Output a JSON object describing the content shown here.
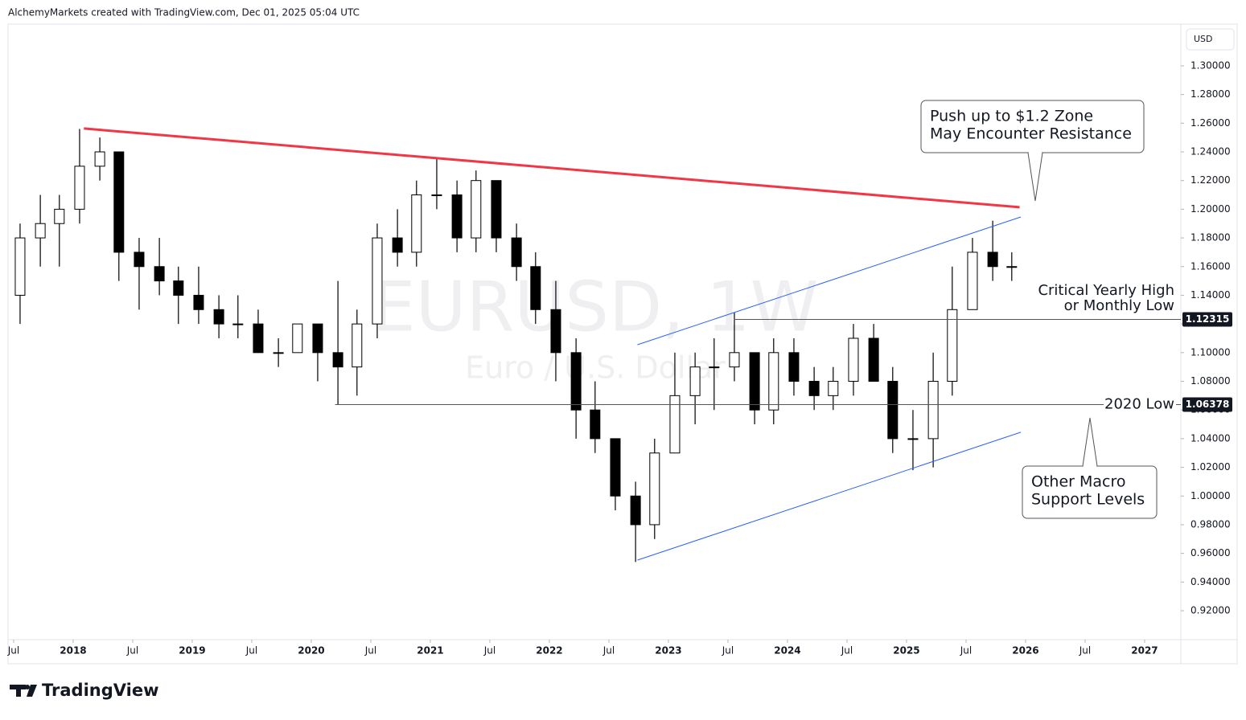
{
  "header": "AlchemyMarkets created with TradingView.com, Dec 01, 2025 05:04 UTC",
  "logo": "TradingView",
  "chart_data": {
    "type": "candlestick",
    "symbol": "EURUSD, 1W",
    "description": "Euro / U.S. Dollar",
    "currency": "USD",
    "up_color": "#ffffff",
    "down_color": "#000000",
    "x": [
      2017.5,
      2017.67,
      2017.83,
      2018.0,
      2018.17,
      2018.33,
      2018.5,
      2018.67,
      2018.83,
      2019.0,
      2019.17,
      2019.33,
      2019.5,
      2019.67,
      2019.83,
      2020.0,
      2020.17,
      2020.33,
      2020.5,
      2020.67,
      2020.83,
      2021.0,
      2021.17,
      2021.33,
      2021.5,
      2021.67,
      2021.83,
      2022.0,
      2022.17,
      2022.33,
      2022.5,
      2022.67,
      2022.83,
      2023.0,
      2023.17,
      2023.33,
      2023.5,
      2023.67,
      2023.83,
      2024.0,
      2024.17,
      2024.33,
      2024.5,
      2024.67,
      2024.83,
      2025.0,
      2025.17,
      2025.33,
      2025.5,
      2025.67,
      2025.83
    ],
    "open": [
      1.14,
      1.18,
      1.19,
      1.2,
      1.23,
      1.24,
      1.17,
      1.16,
      1.15,
      1.14,
      1.13,
      1.12,
      1.12,
      1.1,
      1.1,
      1.12,
      1.1,
      1.09,
      1.12,
      1.18,
      1.17,
      1.21,
      1.21,
      1.18,
      1.22,
      1.18,
      1.16,
      1.13,
      1.1,
      1.06,
      1.04,
      1.0,
      0.98,
      1.03,
      1.07,
      1.09,
      1.09,
      1.1,
      1.06,
      1.1,
      1.08,
      1.07,
      1.08,
      1.11,
      1.08,
      1.04,
      1.04,
      1.08,
      1.13,
      1.17,
      1.16
    ],
    "high": [
      1.19,
      1.21,
      1.21,
      1.256,
      1.25,
      1.24,
      1.18,
      1.18,
      1.16,
      1.16,
      1.14,
      1.14,
      1.13,
      1.11,
      1.12,
      1.12,
      1.15,
      1.13,
      1.19,
      1.2,
      1.22,
      1.235,
      1.22,
      1.227,
      1.22,
      1.19,
      1.17,
      1.15,
      1.11,
      1.08,
      1.04,
      1.01,
      1.04,
      1.1,
      1.1,
      1.11,
      1.128,
      1.1,
      1.11,
      1.11,
      1.09,
      1.09,
      1.12,
      1.12,
      1.09,
      1.06,
      1.1,
      1.16,
      1.18,
      1.192,
      1.17
    ],
    "low": [
      1.12,
      1.16,
      1.16,
      1.19,
      1.22,
      1.15,
      1.13,
      1.14,
      1.12,
      1.12,
      1.11,
      1.11,
      1.1,
      1.09,
      1.1,
      1.08,
      1.064,
      1.07,
      1.11,
      1.16,
      1.16,
      1.2,
      1.17,
      1.17,
      1.17,
      1.15,
      1.12,
      1.08,
      1.04,
      1.03,
      0.99,
      0.954,
      0.97,
      1.03,
      1.05,
      1.06,
      1.08,
      1.05,
      1.05,
      1.07,
      1.06,
      1.06,
      1.07,
      1.08,
      1.03,
      1.018,
      1.02,
      1.07,
      1.13,
      1.15,
      1.15
    ],
    "close": [
      1.18,
      1.19,
      1.2,
      1.23,
      1.24,
      1.17,
      1.16,
      1.15,
      1.14,
      1.13,
      1.12,
      1.12,
      1.1,
      1.1,
      1.12,
      1.1,
      1.09,
      1.12,
      1.18,
      1.17,
      1.21,
      1.21,
      1.18,
      1.22,
      1.18,
      1.16,
      1.13,
      1.1,
      1.06,
      1.04,
      1.0,
      0.98,
      1.03,
      1.07,
      1.09,
      1.09,
      1.1,
      1.06,
      1.1,
      1.08,
      1.07,
      1.08,
      1.11,
      1.08,
      1.04,
      1.04,
      1.08,
      1.13,
      1.17,
      1.16,
      1.16
    ],
    "xlim": [
      2017.453,
      2027.284
    ],
    "xticks": [
      {
        "value": 2017.5,
        "label": "Jul"
      },
      2018,
      {
        "value": 2018.5,
        "label": "Jul"
      },
      2019,
      {
        "value": 2019.5,
        "label": "Jul"
      },
      2020,
      {
        "value": 2020.5,
        "label": "Jul"
      },
      2021,
      {
        "value": 2021.5,
        "label": "Jul"
      },
      2022,
      {
        "value": 2022.5,
        "label": "Jul"
      },
      2023,
      {
        "value": 2023.5,
        "label": "Jul"
      },
      2024,
      {
        "value": 2024.5,
        "label": "Jul"
      },
      2025,
      {
        "value": 2025.5,
        "label": "Jul"
      },
      2026,
      {
        "value": 2026.5,
        "label": "Jul"
      },
      2027
    ],
    "ylim": [
      0.9004,
      1.3291
    ],
    "yticks": [
      {
        "value": 0.92,
        "label": "0.92000"
      },
      {
        "value": 0.94,
        "label": "0.94000"
      },
      {
        "value": 0.96,
        "label": "0.96000"
      },
      {
        "value": 0.98,
        "label": "0.98000"
      },
      {
        "value": 1.0,
        "label": "1.00000"
      },
      {
        "value": 1.02,
        "label": "1.02000"
      },
      {
        "value": 1.04,
        "label": "1.04000"
      },
      {
        "value": 1.06,
        "label": "1.06000"
      },
      {
        "value": 1.08,
        "label": "1.08000"
      },
      {
        "value": 1.1,
        "label": "1.10000"
      },
      {
        "value": 1.12,
        "label": "1.12000"
      },
      {
        "value": 1.14,
        "label": "1.14000"
      },
      {
        "value": 1.16,
        "label": "1.16000"
      },
      {
        "value": 1.18,
        "label": "1.18000"
      },
      {
        "value": 1.2,
        "label": "1.20000"
      },
      {
        "value": 1.22,
        "label": "1.22000"
      },
      {
        "value": 1.24,
        "label": "1.24000"
      },
      {
        "value": 1.26,
        "label": "1.26000"
      },
      {
        "value": 1.28,
        "label": "1.28000"
      },
      {
        "value": 1.3,
        "label": "1.30000"
      }
    ],
    "trendlines": [
      {
        "color": "#f23645",
        "x": [
          2018.09,
          2025.95
        ],
        "values": [
          1.2563,
          1.2014
        ]
      },
      {
        "color": "#2962ff",
        "x": [
          2022.74,
          2025.96
        ],
        "values": [
          1.1055,
          1.1946
        ]
      },
      {
        "color": "#2962ff",
        "x": [
          2022.74,
          2025.96
        ],
        "values": [
          0.9553,
          1.0445
        ]
      }
    ],
    "levels": [
      {
        "value": 1.12315,
        "start": 2023.55,
        "note": [
          "Critical Yearly High",
          "or Monthly Low"
        ]
      },
      {
        "value": 1.06378,
        "start": 2020.2,
        "note": [
          "2020 Low"
        ]
      }
    ],
    "callouts": [
      [
        "Push up to $1.2 Zone",
        "May Encounter Resistance"
      ],
      [
        "Other Macro",
        "Support Levels"
      ]
    ]
  }
}
